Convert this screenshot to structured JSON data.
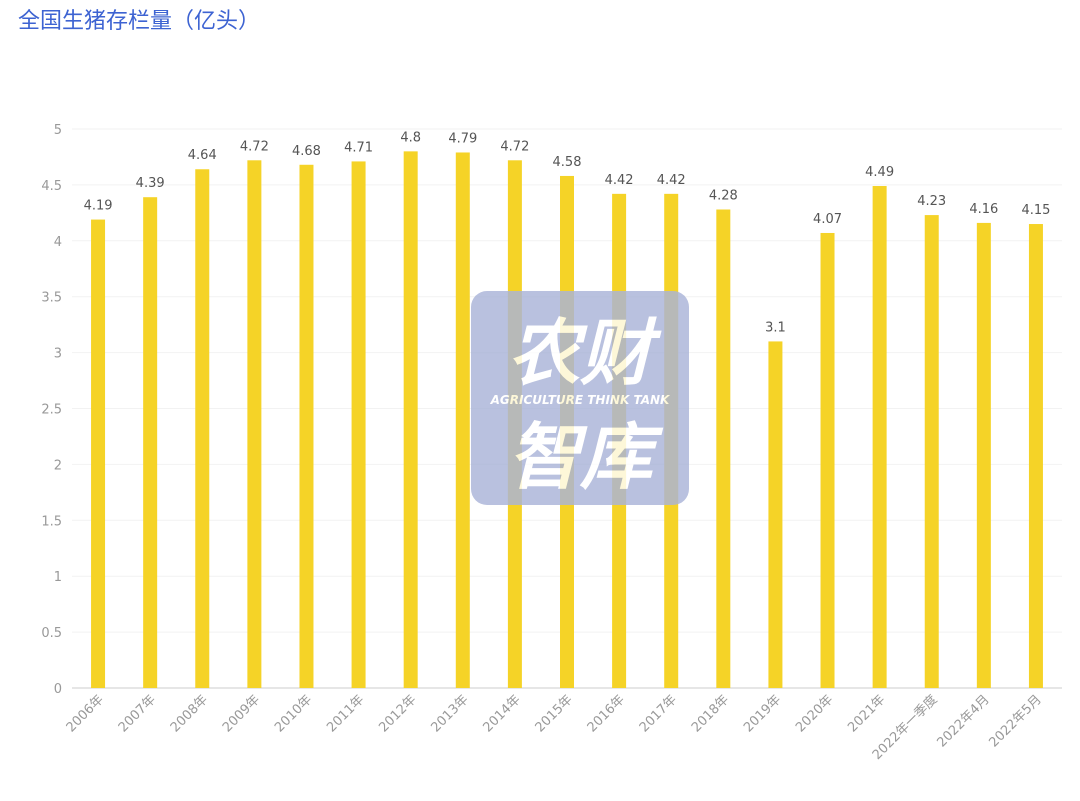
{
  "chart_data": {
    "type": "bar",
    "title": "全国生猪存栏量（亿头）",
    "categories": [
      "2006年",
      "2007年",
      "2008年",
      "2009年",
      "2010年",
      "2011年",
      "2012年",
      "2013年",
      "2014年",
      "2015年",
      "2016年",
      "2017年",
      "2018年",
      "2019年",
      "2020年",
      "2021年",
      "2022年一季度",
      "2022年4月",
      "2022年5月"
    ],
    "values": [
      4.19,
      4.39,
      4.64,
      4.72,
      4.68,
      4.71,
      4.8,
      4.79,
      4.72,
      4.58,
      4.42,
      4.42,
      4.28,
      3.1,
      4.07,
      4.49,
      4.23,
      4.16,
      4.15
    ],
    "color": "#f5d327",
    "ylim": [
      0,
      5
    ],
    "yticks": [
      0,
      0.5,
      1,
      1.5,
      2,
      2.5,
      3,
      3.5,
      4,
      4.5,
      5
    ],
    "grid": true,
    "annotations": [
      "农财",
      "AGRICULTURE THINK TANK",
      "智库"
    ]
  }
}
